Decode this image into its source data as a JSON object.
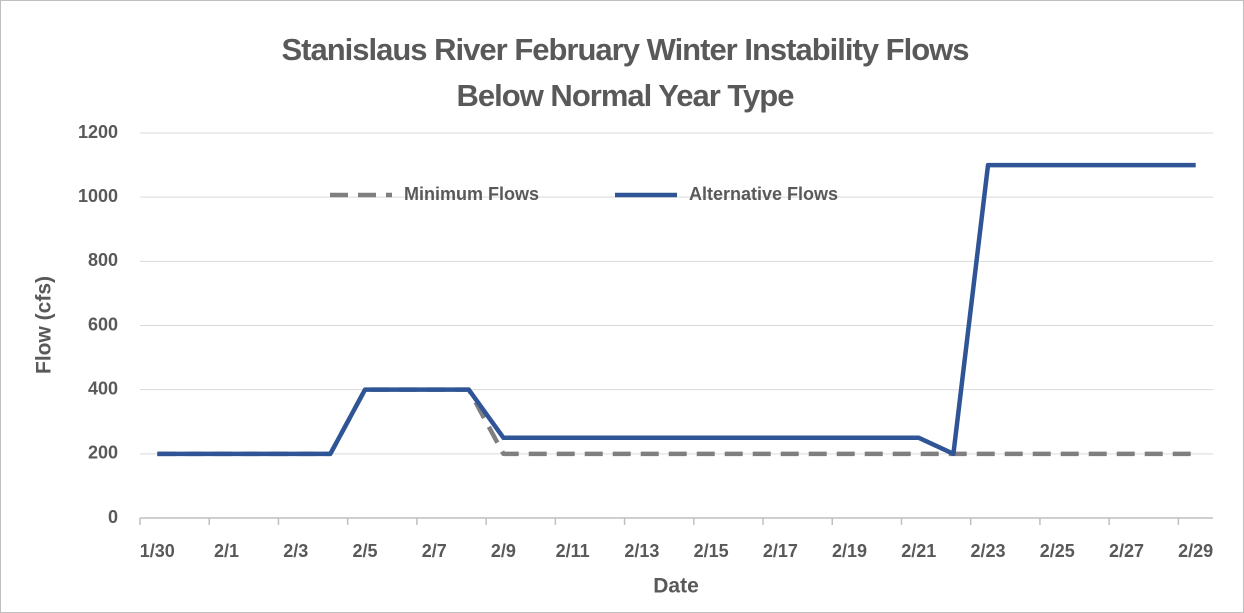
{
  "chart_data": {
    "type": "line",
    "title": "Stanislaus River February Winter Instability Flows",
    "subtitle": "Below Normal Year Type",
    "x_label": "Date",
    "y_label": "Flow (cfs)",
    "categories": [
      "1/30",
      null,
      "2/1",
      null,
      "2/3",
      null,
      "2/5",
      null,
      "2/7",
      null,
      "2/9",
      null,
      "2/11",
      null,
      "2/13",
      null,
      "2/15",
      null,
      "2/17",
      null,
      "2/19",
      null,
      "2/21",
      null,
      "2/23",
      null,
      "2/25",
      null,
      "2/27",
      null,
      "2/29"
    ],
    "series": [
      {
        "name": "Minimum Flows",
        "color": "#7f7f7f",
        "dash": true,
        "values": [
          200,
          200,
          200,
          200,
          200,
          200,
          400,
          400,
          400,
          400,
          200,
          200,
          200,
          200,
          200,
          200,
          200,
          200,
          200,
          200,
          200,
          200,
          200,
          200,
          200,
          200,
          200,
          200,
          200,
          200,
          200
        ]
      },
      {
        "name": "Alternative Flows",
        "color": "#2f5597",
        "dash": false,
        "values": [
          200,
          200,
          200,
          200,
          200,
          200,
          400,
          400,
          400,
          400,
          250,
          250,
          250,
          250,
          250,
          250,
          250,
          250,
          250,
          250,
          250,
          250,
          250,
          200,
          1100,
          1100,
          1100,
          1100,
          1100,
          1100,
          1100
        ]
      }
    ],
    "ylim": [
      0,
      1200
    ],
    "yticks": [
      0,
      200,
      400,
      600,
      800,
      1000,
      1200
    ],
    "grid": true,
    "legend": "top"
  }
}
